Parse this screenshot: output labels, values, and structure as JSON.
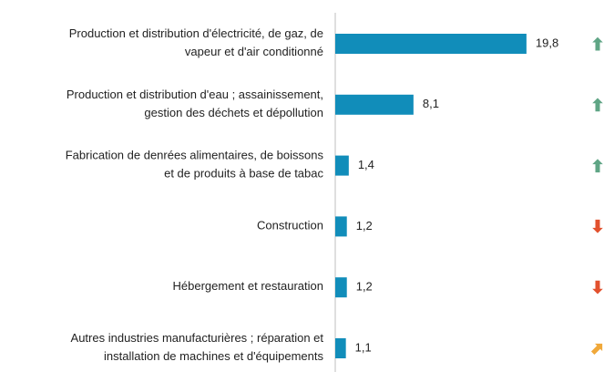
{
  "chart_data": {
    "type": "bar",
    "orientation": "horizontal",
    "categories": [
      [
        "Production et distribution d'électricité, de gaz, de",
        "vapeur et d'air conditionné"
      ],
      [
        "Production et distribution d'eau ; assainissement,",
        "gestion des déchets et dépollution"
      ],
      [
        "Fabrication de denrées alimentaires, de boissons",
        "et de produits à base de tabac"
      ],
      [
        "Construction"
      ],
      [
        "Hébergement et restauration"
      ],
      [
        "Autres industries manufacturières ; réparation et",
        "installation de machines et d'équipements"
      ]
    ],
    "values": [
      19.8,
      8.1,
      1.4,
      1.2,
      1.2,
      1.1
    ],
    "value_labels": [
      "19,8",
      "8,1",
      "1,4",
      "1,2",
      "1,2",
      "1,1"
    ],
    "color": "#118dba",
    "xlim": [
      0,
      20
    ],
    "trend": [
      "up",
      "up",
      "up",
      "down",
      "down",
      "up-right"
    ],
    "trend_colors": {
      "up": "#5fa585",
      "down": "#e2512e",
      "up-right": "#f0a83a"
    }
  }
}
